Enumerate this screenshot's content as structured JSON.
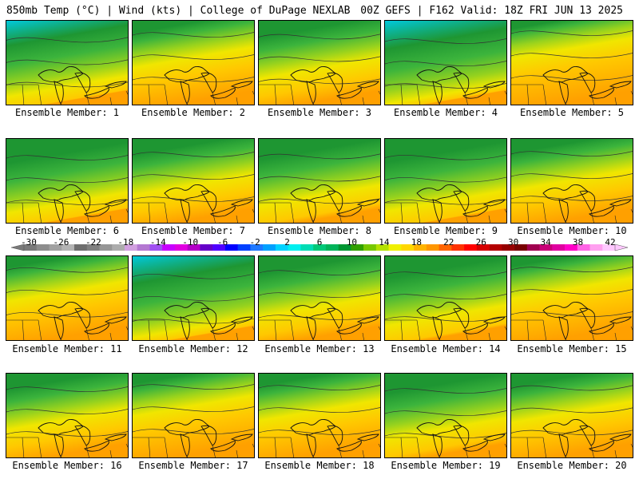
{
  "header": {
    "left": "850mb Temp (°C) | Wind (kts) | College of DuPage NEXLAB",
    "right": "00Z GEFS | F162 Valid: 18Z FRI JUN 13 2025"
  },
  "caption_prefix": "Ensemble Member: ",
  "members": [
    {
      "id": "1",
      "label": "Ensemble Member: 1",
      "band": 0.62
    },
    {
      "id": "2",
      "label": "Ensemble Member: 2",
      "band": 0.3
    },
    {
      "id": "3",
      "label": "Ensemble Member: 3",
      "band": 0.42
    },
    {
      "id": "4",
      "label": "Ensemble Member: 4",
      "band": 0.7
    },
    {
      "id": "5",
      "label": "Ensemble Member: 5",
      "band": 0.2
    },
    {
      "id": "6",
      "label": "Ensemble Member: 6",
      "band": 0.6
    },
    {
      "id": "7",
      "label": "Ensemble Member: 7",
      "band": 0.4
    },
    {
      "id": "8",
      "label": "Ensemble Member: 8",
      "band": 0.52
    },
    {
      "id": "9",
      "label": "Ensemble Member: 9",
      "band": 0.58
    },
    {
      "id": "10",
      "label": "Ensemble Member: 10",
      "band": 0.35
    },
    {
      "id": "11",
      "label": "Ensemble Member: 11",
      "band": 0.28
    },
    {
      "id": "12",
      "label": "Ensemble Member: 12",
      "band": 0.68
    },
    {
      "id": "13",
      "label": "Ensemble Member: 13",
      "band": 0.45
    },
    {
      "id": "14",
      "label": "Ensemble Member: 14",
      "band": 0.55
    },
    {
      "id": "15",
      "label": "Ensemble Member: 15",
      "band": 0.25
    },
    {
      "id": "16",
      "label": "Ensemble Member: 16",
      "band": 0.4
    },
    {
      "id": "17",
      "label": "Ensemble Member: 17",
      "band": 0.25
    },
    {
      "id": "18",
      "label": "Ensemble Member: 18",
      "band": 0.3
    },
    {
      "id": "19",
      "label": "Ensemble Member: 19",
      "band": 0.5
    },
    {
      "id": "20",
      "label": "Ensemble Member: 20",
      "band": 0.32
    }
  ],
  "colorbar": {
    "labels": [
      "-30",
      "-26",
      "-22",
      "-18",
      "-14",
      "-10",
      "-6",
      "-2",
      "2",
      "6",
      "10",
      "14",
      "18",
      "22",
      "26",
      "30",
      "34",
      "38",
      "42"
    ],
    "colors": [
      "#7a7a7a",
      "#8d8d8d",
      "#a0a0a0",
      "#b4b4b4",
      "#6e6e6e",
      "#808080",
      "#969696",
      "#acacac",
      "#d2a0e0",
      "#b478d2",
      "#a050f0",
      "#c800ff",
      "#e000e0",
      "#b400c8",
      "#6400c8",
      "#5000ff",
      "#0000ff",
      "#0040ff",
      "#1e78ff",
      "#00a0ff",
      "#00d2ff",
      "#00f0f0",
      "#00dcb4",
      "#00c878",
      "#00b45a",
      "#009632",
      "#32a000",
      "#78c800",
      "#b4e100",
      "#f0f000",
      "#ffd700",
      "#ffb400",
      "#ff9600",
      "#ff6400",
      "#ff3200",
      "#ff0000",
      "#d70000",
      "#b40000",
      "#960000",
      "#780000",
      "#a00050",
      "#c80078",
      "#e000a0",
      "#ff00c8",
      "#ff64e6",
      "#ffa0f0",
      "#ffc8ff"
    ]
  },
  "palette": {
    "cold": "#00c8dc",
    "green_dark": "#1e9632",
    "green": "#3cb43c",
    "lime": "#96d21e",
    "yellow": "#f0e600",
    "gold": "#ffc800",
    "orange": "#ffa000"
  }
}
